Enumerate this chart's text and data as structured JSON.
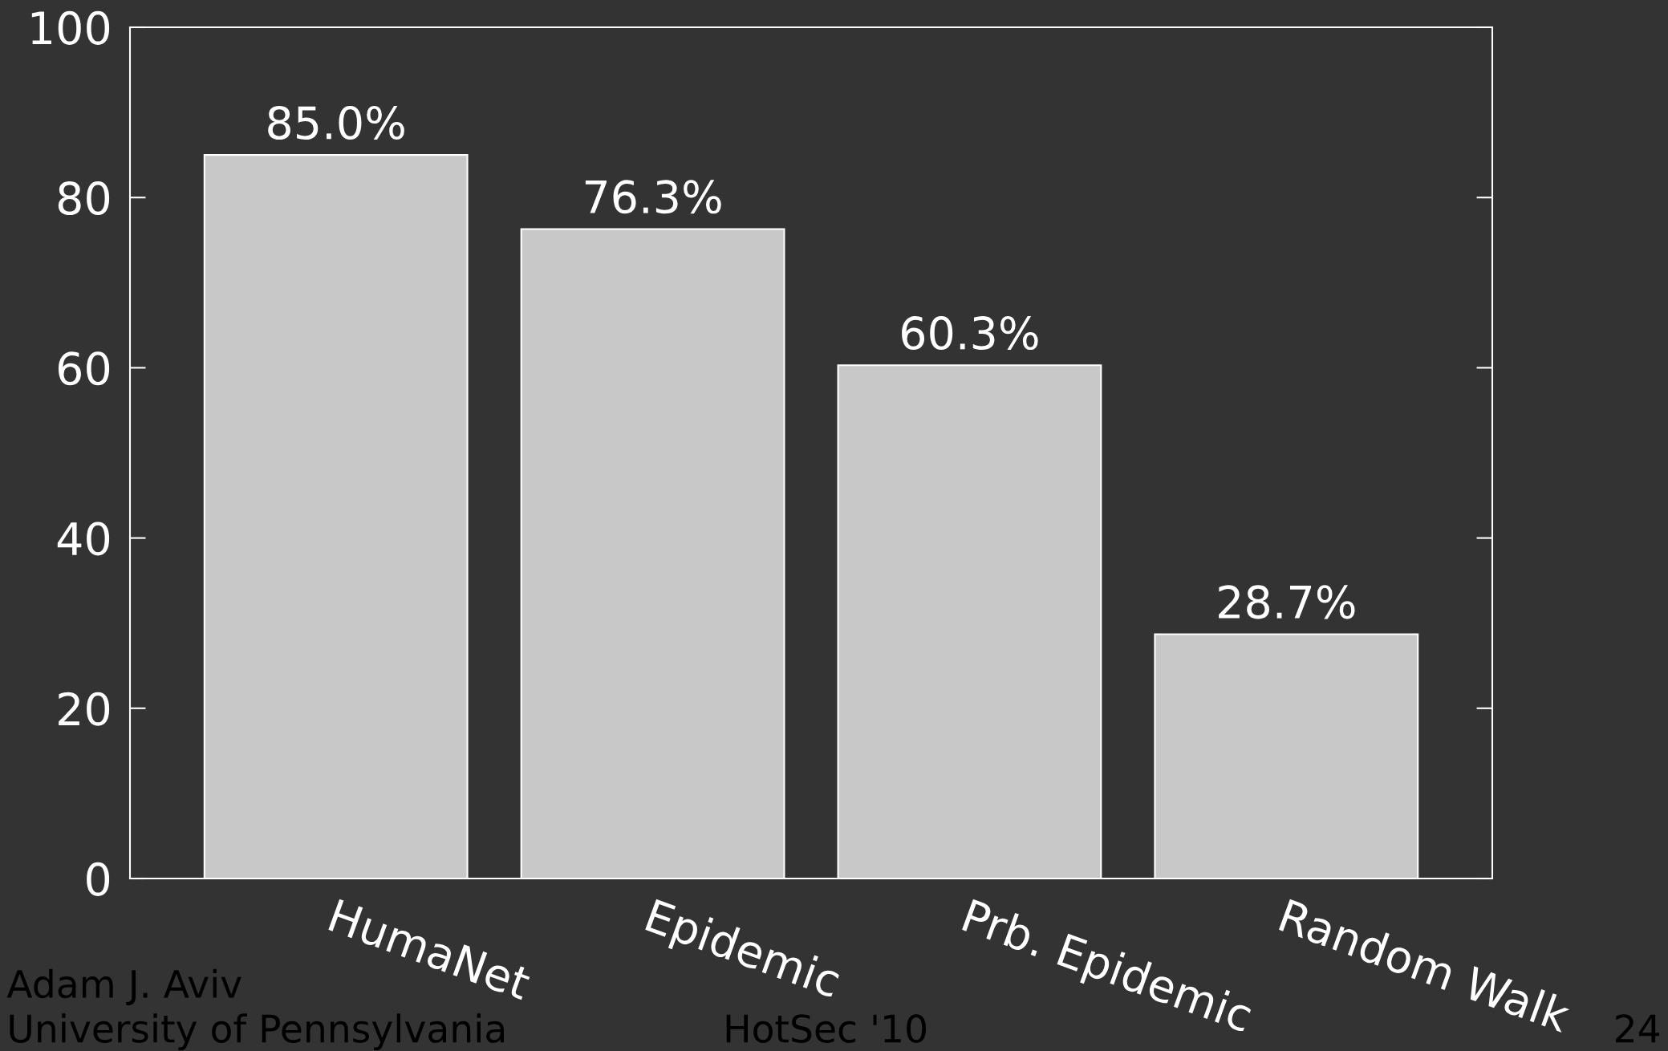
{
  "chart_data": {
    "type": "bar",
    "categories": [
      "HumaNet",
      "Epidemic",
      "Prb. Epidemic",
      "Random Walk"
    ],
    "values": [
      85.0,
      76.3,
      60.3,
      28.7
    ],
    "value_labels": [
      "85.0%",
      "76.3%",
      "60.3%",
      "28.7%"
    ],
    "color": "#c8c8c8",
    "ylim": [
      0,
      100
    ],
    "yticks": [
      0,
      20,
      40,
      60,
      80,
      100
    ],
    "grid": false,
    "legend": false,
    "annotations": [
      "Adam J. Aviv",
      "University of Pennsylvania",
      "HotSec '10",
      "24"
    ]
  }
}
